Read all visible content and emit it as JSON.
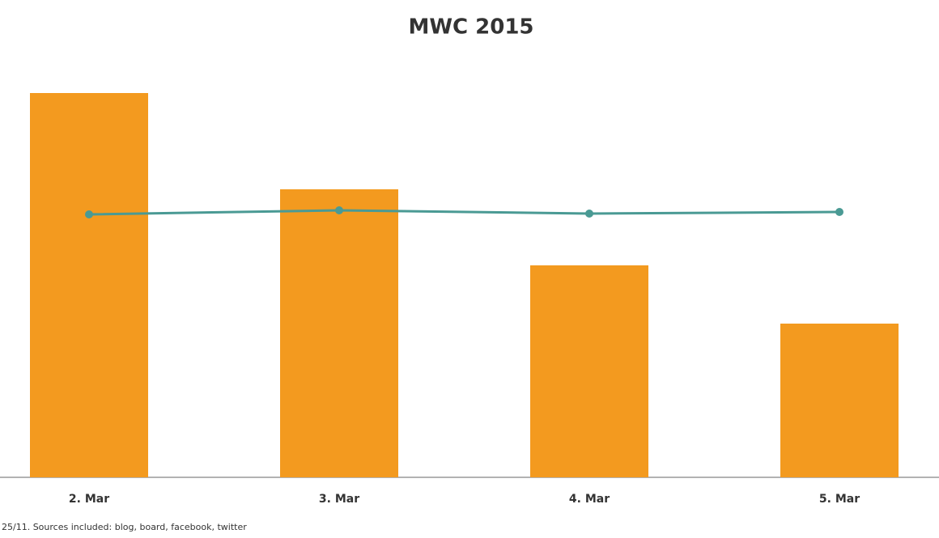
{
  "chart_data": {
    "type": "bar",
    "title": "MWC 2015",
    "categories": [
      "2. Mar",
      "3. Mar",
      "4. Mar",
      "5. Mar"
    ],
    "series": [
      {
        "type": "bar",
        "color": "#f39a1f",
        "values": [
          475,
          356,
          262,
          190
        ]
      },
      {
        "type": "line",
        "color": "#4a9a94",
        "values": [
          325,
          330,
          326,
          328
        ]
      }
    ],
    "ylim": [
      0,
      500
    ],
    "footnote": "25/11. Sources included: blog, board, facebook, twitter"
  }
}
